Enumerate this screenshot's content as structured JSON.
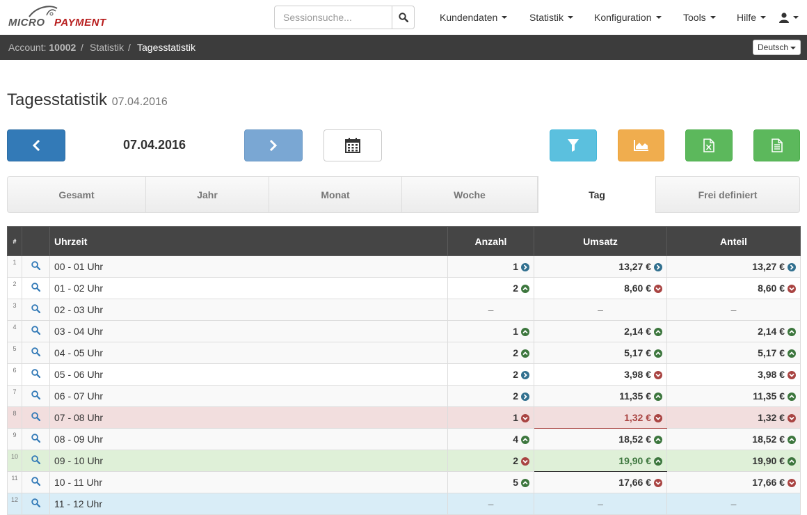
{
  "brand": {
    "logo_part1": "MICRO",
    "logo_part2": "PAYMENT"
  },
  "search": {
    "placeholder": "Sessionsuche...",
    "value": ""
  },
  "nav": {
    "items": [
      {
        "label": "Kundendaten"
      },
      {
        "label": "Statistik"
      },
      {
        "label": "Konfiguration"
      },
      {
        "label": "Tools"
      },
      {
        "label": "Hilfe"
      }
    ]
  },
  "breadcrumb": {
    "account_prefix": "Account:",
    "account_id": "10002",
    "separator": "/",
    "statistik": "Statistik",
    "current": "Tagesstatistik"
  },
  "language": {
    "selected": "Deutsch"
  },
  "page": {
    "title": "Tagesstatistik",
    "subtitle": "07.04.2016"
  },
  "toolbar": {
    "current_date": "07.04.2016"
  },
  "tabs": [
    {
      "label": "Gesamt",
      "active": false
    },
    {
      "label": "Jahr",
      "active": false
    },
    {
      "label": "Monat",
      "active": false
    },
    {
      "label": "Woche",
      "active": false
    },
    {
      "label": "Tag",
      "active": true
    },
    {
      "label": "Frei definiert",
      "active": false
    }
  ],
  "table": {
    "headers": {
      "num": "#",
      "icon": "",
      "uhrzeit": "Uhrzeit",
      "anzahl": "Anzahl",
      "umsatz": "Umsatz",
      "anteil": "Anteil"
    },
    "empty_marker": "–",
    "indicator_colors": {
      "same": "#31708f",
      "up": "#3c763d",
      "down": "#a94442"
    },
    "rows": [
      {
        "num": "1",
        "time": "00 - 01 Uhr",
        "anzahl": "1",
        "anzahl_ind": "same",
        "umsatz": "13,27 €",
        "umsatz_ind": "same",
        "anteil": "13,27 €",
        "anteil_ind": "same",
        "style": "odd"
      },
      {
        "num": "2",
        "time": "01 - 02 Uhr",
        "anzahl": "2",
        "anzahl_ind": "up",
        "umsatz": "8,60 €",
        "umsatz_ind": "down",
        "anteil": "8,60 €",
        "anteil_ind": "down",
        "style": "even"
      },
      {
        "num": "3",
        "time": "02 - 03 Uhr",
        "anzahl": "",
        "anzahl_ind": "",
        "umsatz": "",
        "umsatz_ind": "",
        "anteil": "",
        "anteil_ind": "",
        "style": "odd"
      },
      {
        "num": "4",
        "time": "03 - 04 Uhr",
        "anzahl": "1",
        "anzahl_ind": "up",
        "umsatz": "2,14 €",
        "umsatz_ind": "up",
        "anteil": "2,14 €",
        "anteil_ind": "up",
        "style": "odd"
      },
      {
        "num": "5",
        "time": "04 - 05 Uhr",
        "anzahl": "2",
        "anzahl_ind": "up",
        "umsatz": "5,17 €",
        "umsatz_ind": "up",
        "anteil": "5,17 €",
        "anteil_ind": "up",
        "style": "odd"
      },
      {
        "num": "6",
        "time": "05 - 06 Uhr",
        "anzahl": "2",
        "anzahl_ind": "same",
        "umsatz": "3,98 €",
        "umsatz_ind": "down",
        "anteil": "3,98 €",
        "anteil_ind": "down",
        "style": "even"
      },
      {
        "num": "7",
        "time": "06 - 07 Uhr",
        "anzahl": "2",
        "anzahl_ind": "same",
        "umsatz": "11,35 €",
        "umsatz_ind": "up",
        "anteil": "11,35 €",
        "anteil_ind": "up",
        "style": "odd"
      },
      {
        "num": "8",
        "time": "07 - 08 Uhr",
        "anzahl": "1",
        "anzahl_ind": "down",
        "umsatz": "1,32 €",
        "umsatz_ind": "down",
        "anteil": "1,32 €",
        "anteil_ind": "down",
        "style": "danger"
      },
      {
        "num": "9",
        "time": "08 - 09 Uhr",
        "anzahl": "4",
        "anzahl_ind": "up",
        "umsatz": "18,52 €",
        "umsatz_ind": "up",
        "anteil": "18,52 €",
        "anteil_ind": "up",
        "style": "odd"
      },
      {
        "num": "10",
        "time": "09 - 10 Uhr",
        "anzahl": "2",
        "anzahl_ind": "down",
        "umsatz": "19,90 €",
        "umsatz_ind": "up",
        "anteil": "19,90 €",
        "anteil_ind": "up",
        "style": "success"
      },
      {
        "num": "11",
        "time": "10 - 11 Uhr",
        "anzahl": "5",
        "anzahl_ind": "up",
        "umsatz": "17,66 €",
        "umsatz_ind": "down",
        "anteil": "17,66 €",
        "anteil_ind": "down",
        "style": "odd"
      },
      {
        "num": "12",
        "time": "11 - 12 Uhr",
        "anzahl": "",
        "anzahl_ind": "",
        "umsatz": "",
        "umsatz_ind": "",
        "anteil": "",
        "anteil_ind": "",
        "style": "info"
      }
    ]
  }
}
